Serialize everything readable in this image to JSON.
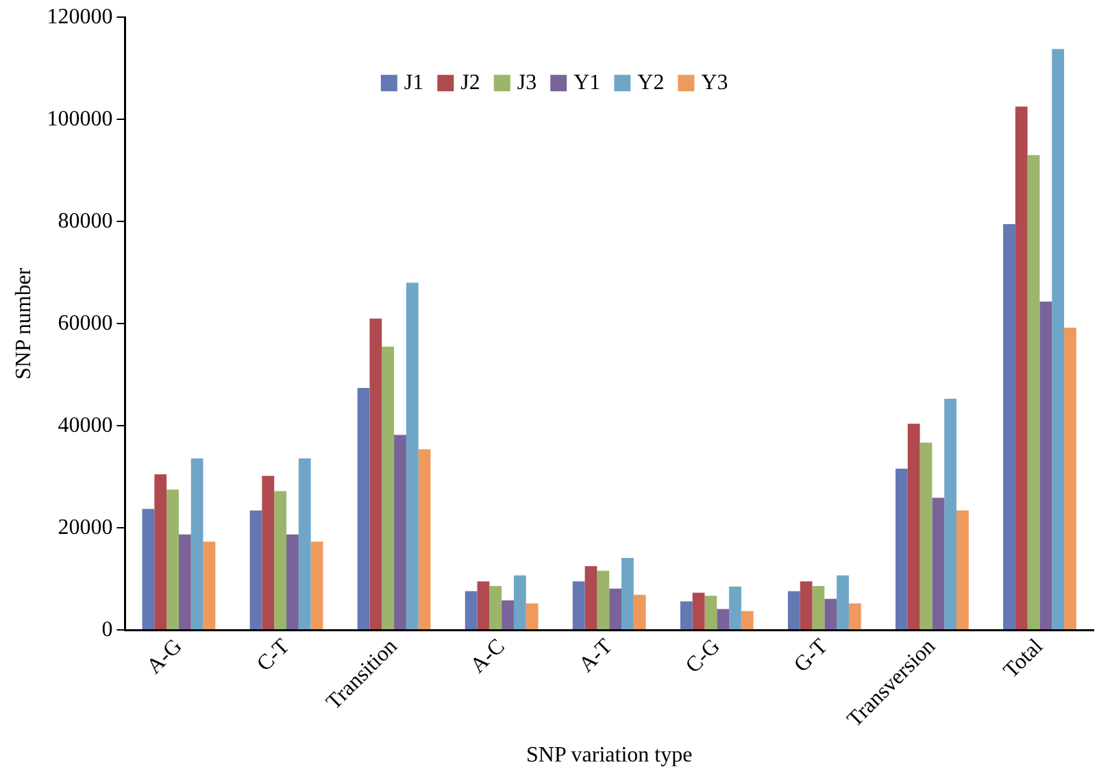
{
  "chart_data": {
    "type": "bar",
    "xlabel": "SNP variation type",
    "ylabel": "SNP number",
    "categories": [
      "A-G",
      "C-T",
      "Transition",
      "A-C",
      "A-T",
      "C-G",
      "G-T",
      "Transversion",
      "Total"
    ],
    "series": [
      {
        "name": "J1",
        "color": "#6478b4",
        "values": [
          23700,
          23400,
          47400,
          7600,
          9500,
          5600,
          7600,
          31600,
          79500
        ]
      },
      {
        "name": "J2",
        "color": "#b04a50",
        "values": [
          30500,
          30200,
          61000,
          9500,
          12500,
          7300,
          9500,
          40400,
          102500
        ]
      },
      {
        "name": "J3",
        "color": "#9bb66a",
        "values": [
          27500,
          27200,
          55500,
          8600,
          11600,
          6700,
          8600,
          36700,
          93000
        ]
      },
      {
        "name": "Y1",
        "color": "#7a6399",
        "values": [
          18700,
          18700,
          38200,
          5800,
          8100,
          4100,
          6100,
          25900,
          64300
        ]
      },
      {
        "name": "Y2",
        "color": "#6fa6c8",
        "values": [
          33600,
          33600,
          68000,
          10700,
          14100,
          8500,
          10700,
          45300,
          113800
        ]
      },
      {
        "name": "Y3",
        "color": "#ef9a5c",
        "values": [
          17300,
          17300,
          35400,
          5200,
          6900,
          3700,
          5200,
          23400,
          59200
        ]
      }
    ],
    "ylim": [
      0,
      120000
    ],
    "yticks": [
      0,
      20000,
      40000,
      60000,
      80000,
      100000,
      120000
    ],
    "grid": false,
    "legend": "top"
  }
}
